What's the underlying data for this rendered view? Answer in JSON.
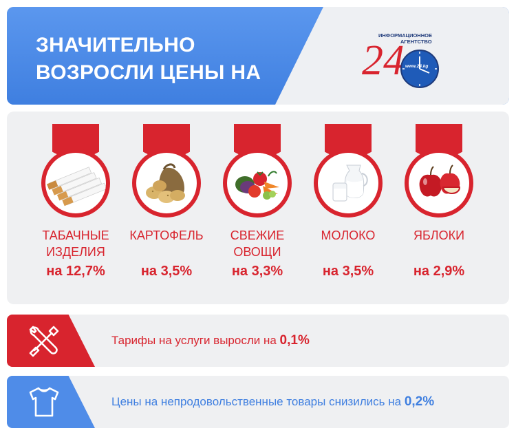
{
  "header": {
    "title_line1": "ЗНАЧИТЕЛЬНО",
    "title_line2": "ВОЗРОСЛИ ЦЕНЫ НА",
    "logo": {
      "number": "24",
      "agency_line1": "ИНФОРМАЦИОННОЕ",
      "agency_line2": "АГЕНТСТВО",
      "site": "www.24.kg"
    }
  },
  "products": [
    {
      "name_line1": "ТАБАЧНЫЕ",
      "name_line2": "ИЗДЕЛИЯ",
      "percent": "на 12,7%",
      "icon": "cigarettes-icon"
    },
    {
      "name_line1": "КАРТОФЕЛЬ",
      "name_line2": "",
      "percent": "на 3,5%",
      "icon": "potatoes-icon"
    },
    {
      "name_line1": "СВЕЖИЕ",
      "name_line2": "ОВОЩИ",
      "percent": "на 3,3%",
      "icon": "vegetables-icon"
    },
    {
      "name_line1": "МОЛОКО",
      "name_line2": "",
      "percent": "на 3,5%",
      "icon": "milk-icon"
    },
    {
      "name_line1": "ЯБЛОКИ",
      "name_line2": "",
      "percent": "на 2,9%",
      "icon": "apples-icon"
    }
  ],
  "services": {
    "text": "Тарифы на услуги выросли на",
    "value": "0,1%",
    "icon": "tools-icon"
  },
  "nonfood": {
    "text": "Цены на непродовольственные товары снизились на",
    "value": "0,2%",
    "icon": "tshirt-icon"
  },
  "colors": {
    "accent_red": "#d8242e",
    "accent_blue": "#4f8ce8",
    "panel_gray": "#eff0f2"
  }
}
